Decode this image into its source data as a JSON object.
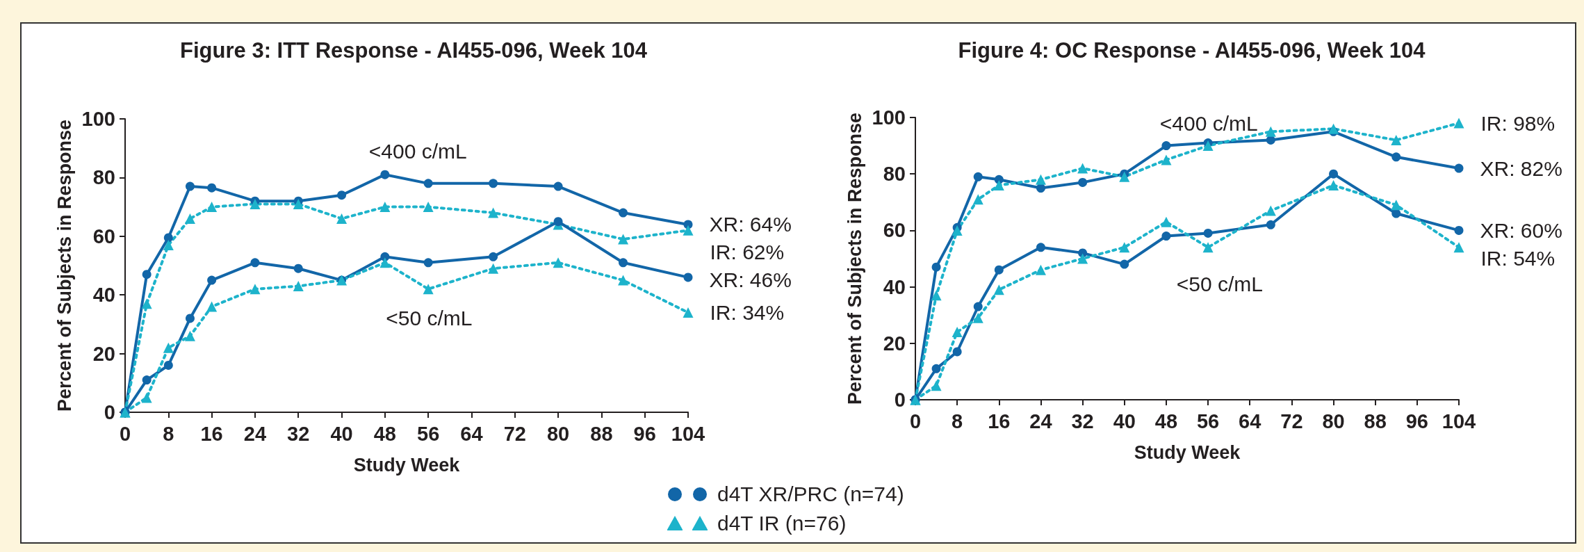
{
  "chart_data": [
    {
      "type": "line",
      "title": "Figure 3: ITT Response - AI455-096, Week 104",
      "xlabel": "Study Week",
      "ylabel": "Percent of Subjects in Response",
      "x": [
        0,
        4,
        8,
        12,
        16,
        24,
        32,
        40,
        48,
        56,
        68,
        80,
        92,
        104
      ],
      "xlim": [
        0,
        104
      ],
      "xticks": [
        0,
        8,
        16,
        24,
        32,
        40,
        48,
        56,
        64,
        72,
        80,
        88,
        96,
        104
      ],
      "ylim": [
        0,
        100
      ],
      "yticks": [
        0,
        20,
        40,
        60,
        80,
        100
      ],
      "grid": false,
      "legend": "bottom",
      "series": [
        {
          "name": "d4T XR/PRC (n=74)",
          "color": "#1266a8",
          "marker": "circle",
          "line_style": "solid",
          "values": [
            0,
            47,
            59.5,
            77,
            76.5,
            72,
            72,
            74,
            81,
            78,
            78,
            77,
            68,
            64
          ],
          "value_labels": [
            null,
            null,
            null,
            null,
            null,
            null,
            null,
            null,
            null,
            null,
            null,
            null,
            null,
            "XR: 64%"
          ]
        },
        {
          "name": "d4T IR (n=76)",
          "color": "#1db3cb",
          "marker": "triangle",
          "line_style": "dashed",
          "values": [
            0,
            37,
            57,
            66,
            70,
            71,
            71,
            66,
            70,
            70,
            68,
            64,
            59,
            62
          ],
          "value_labels": [
            null,
            null,
            null,
            null,
            null,
            null,
            null,
            null,
            null,
            null,
            null,
            null,
            null,
            "IR: 62%"
          ]
        },
        {
          "color": "#1266a8",
          "marker": "circle",
          "line_style": "solid",
          "values": [
            0,
            11,
            16,
            32,
            45,
            51,
            49,
            45,
            53,
            51,
            53,
            65,
            51,
            46
          ],
          "value_labels": [
            null,
            null,
            null,
            null,
            null,
            null,
            null,
            null,
            null,
            null,
            null,
            null,
            null,
            "XR: 46%"
          ]
        },
        {
          "color": "#1db3cb",
          "marker": "triangle",
          "line_style": "dashed",
          "values": [
            0,
            5,
            22,
            26,
            36,
            42,
            43,
            45,
            51,
            42,
            49,
            51,
            45,
            34
          ],
          "value_labels": [
            null,
            null,
            null,
            null,
            null,
            null,
            null,
            null,
            null,
            null,
            null,
            null,
            null,
            "IR: 34%"
          ]
        }
      ],
      "annotations": [
        "<400 c/mL",
        "<50 c/mL"
      ]
    },
    {
      "type": "line",
      "title": "Figure 4: OC Response - AI455-096, Week 104",
      "xlabel": "Study Week",
      "ylabel": "Percent of Subjects in Response",
      "x": [
        0,
        4,
        8,
        12,
        16,
        24,
        32,
        40,
        48,
        56,
        68,
        80,
        92,
        104
      ],
      "xlim": [
        0,
        104
      ],
      "xticks": [
        0,
        8,
        16,
        24,
        32,
        40,
        48,
        56,
        64,
        72,
        80,
        88,
        96,
        104
      ],
      "ylim": [
        0,
        100
      ],
      "yticks": [
        0,
        20,
        40,
        60,
        80,
        100
      ],
      "grid": false,
      "series": [
        {
          "color": "#1266a8",
          "marker": "circle",
          "line_style": "solid",
          "values": [
            0,
            47,
            61,
            79,
            78,
            75,
            77,
            80,
            90,
            91,
            92,
            95,
            86,
            82
          ],
          "value_labels": [
            null,
            null,
            null,
            null,
            null,
            null,
            null,
            null,
            null,
            null,
            null,
            null,
            null,
            "XR: 82%"
          ]
        },
        {
          "color": "#1db3cb",
          "marker": "triangle",
          "line_style": "dashed",
          "values": [
            0,
            37,
            60,
            71,
            76,
            78,
            82,
            79,
            85,
            90,
            95,
            96,
            92,
            98
          ],
          "value_labels": [
            null,
            null,
            null,
            null,
            null,
            null,
            null,
            null,
            null,
            null,
            null,
            null,
            null,
            "IR: 98%"
          ]
        },
        {
          "color": "#1266a8",
          "marker": "circle",
          "line_style": "solid",
          "values": [
            0,
            11,
            17,
            33,
            46,
            54,
            52,
            48,
            58,
            59,
            62,
            80,
            66,
            60
          ],
          "value_labels": [
            null,
            null,
            null,
            null,
            null,
            null,
            null,
            null,
            null,
            null,
            null,
            null,
            null,
            "XR: 60%"
          ]
        },
        {
          "color": "#1db3cb",
          "marker": "triangle",
          "line_style": "dashed",
          "values": [
            0,
            5,
            24,
            29,
            39,
            46,
            50,
            54,
            63,
            54,
            67,
            76,
            69,
            54
          ],
          "value_labels": [
            null,
            null,
            null,
            null,
            null,
            null,
            null,
            null,
            null,
            null,
            null,
            null,
            null,
            "IR: 54%"
          ]
        }
      ],
      "annotations": [
        "<400 c/mL",
        "<50 c/mL"
      ]
    }
  ]
}
